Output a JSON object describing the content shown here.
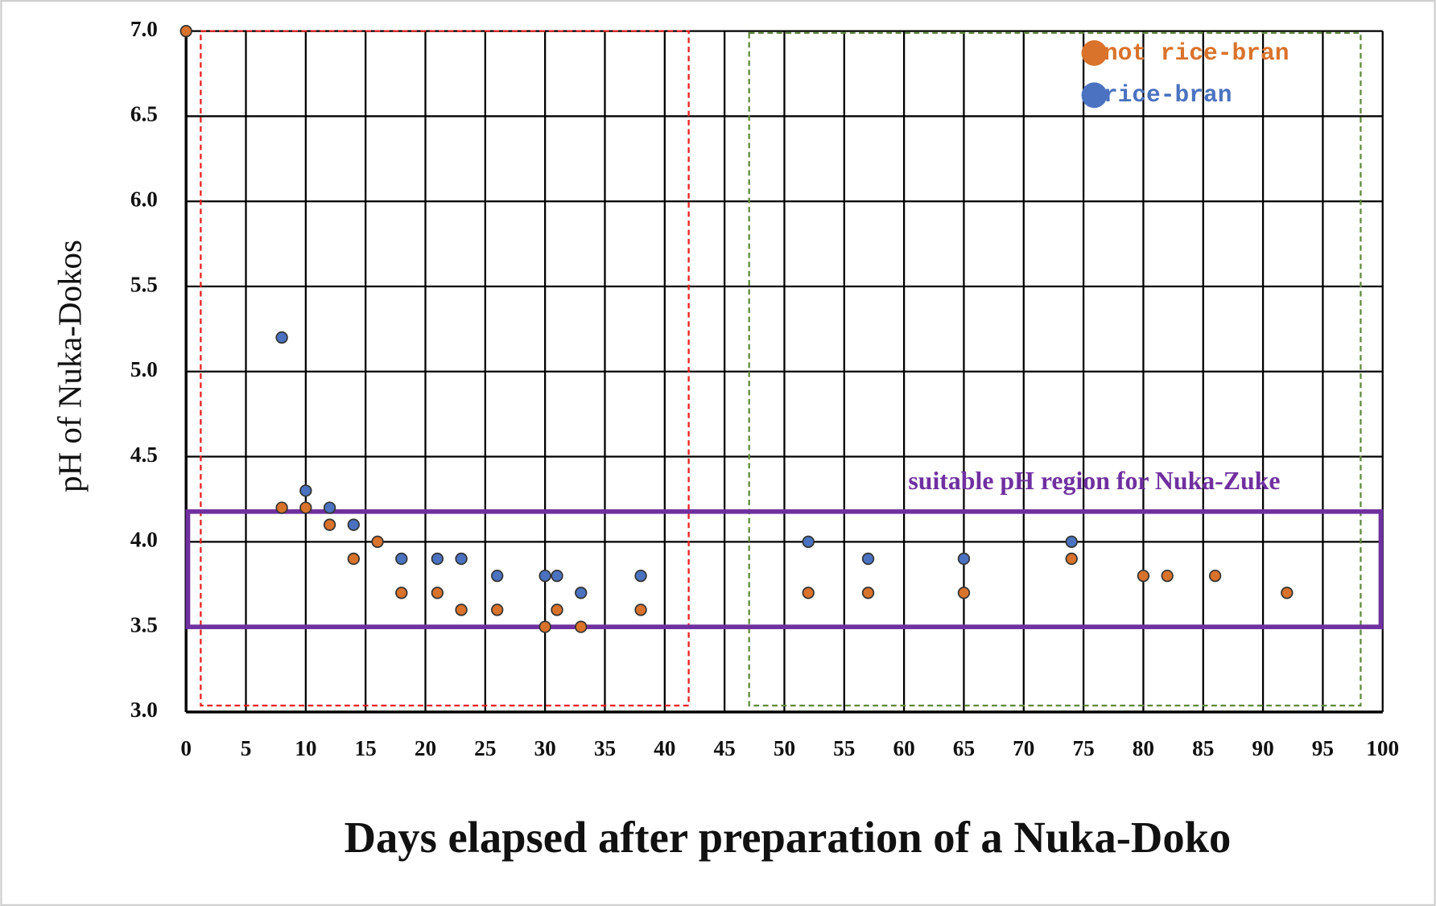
{
  "chart_data": {
    "type": "scatter",
    "xlabel": "Days elapsed after preparation of a Nuka-Doko",
    "ylabel": "pH of Nuka-Dokos",
    "annotation": "suitable pH region for Nuka-Zuke",
    "xlim": [
      0,
      100
    ],
    "xticks": [
      0,
      5,
      10,
      15,
      20,
      25,
      30,
      35,
      40,
      45,
      50,
      55,
      60,
      65,
      70,
      75,
      80,
      85,
      90,
      95,
      100
    ],
    "ylim": [
      3.0,
      7.0
    ],
    "yticks": [
      {
        "value": 3.0,
        "label": "3.0"
      },
      {
        "value": 3.5,
        "label": "3.5"
      },
      {
        "value": 4.0,
        "label": "4.0"
      },
      {
        "value": 4.5,
        "label": "4.5"
      },
      {
        "value": 5.0,
        "label": "5.0"
      },
      {
        "value": 5.5,
        "label": "5.5"
      },
      {
        "value": 6.0,
        "label": "6.0"
      },
      {
        "value": 6.5,
        "label": "6.5"
      },
      {
        "value": 7.0,
        "label": "7.0"
      }
    ],
    "grid": true,
    "legend": "upper right",
    "series": [
      {
        "name": "not rice-bran",
        "color": "#d9722b",
        "x": [
          0,
          8,
          10,
          12,
          14,
          16,
          18,
          21,
          23,
          26,
          30,
          31,
          33,
          38,
          52,
          57,
          65,
          74,
          80,
          82,
          86,
          92
        ],
        "values": [
          7.0,
          4.2,
          4.2,
          4.1,
          3.9,
          4.0,
          3.7,
          3.7,
          3.6,
          3.6,
          3.5,
          3.6,
          3.5,
          3.6,
          3.7,
          3.7,
          3.7,
          3.9,
          3.8,
          3.8,
          3.8,
          3.7
        ]
      },
      {
        "name": "rice-bran",
        "color": "#4a72c0",
        "x": [
          8,
          10,
          12,
          14,
          18,
          21,
          23,
          26,
          30,
          31,
          33,
          38,
          52,
          57,
          65,
          74
        ],
        "values": [
          5.2,
          4.3,
          4.2,
          4.1,
          3.9,
          3.9,
          3.9,
          3.8,
          3.8,
          3.8,
          3.7,
          3.8,
          4.0,
          3.9,
          3.9,
          4.0
        ]
      }
    ]
  }
}
